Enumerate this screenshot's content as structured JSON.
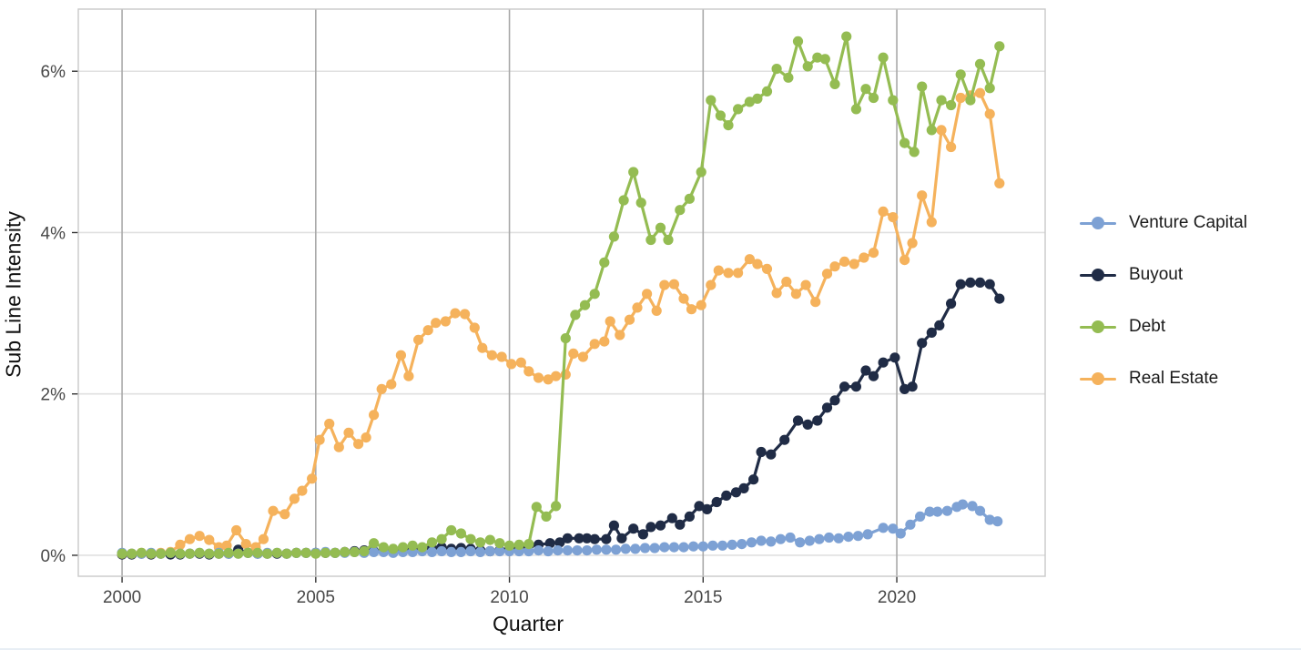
{
  "chart_data": {
    "type": "line",
    "title": "",
    "xlabel": "Quarter",
    "ylabel": "Sub Line Intensity",
    "x_unit": "year (fractional years, quarterly cadence)",
    "y_unit": "percent",
    "xlim": [
      1998.87,
      2023.83
    ],
    "ylim": [
      -0.26,
      6.77
    ],
    "grid": {
      "vertical": true,
      "horizontal": true
    },
    "legend_position": "right",
    "x_ticks": [
      {
        "value": 2000,
        "label": "2000"
      },
      {
        "value": 2005,
        "label": "2005"
      },
      {
        "value": 2010,
        "label": "2010"
      },
      {
        "value": 2015,
        "label": "2015"
      },
      {
        "value": 2020,
        "label": "2020"
      }
    ],
    "y_ticks": [
      {
        "value": 0,
        "label": "0%"
      },
      {
        "value": 2,
        "label": "2%"
      },
      {
        "value": 4,
        "label": "4%"
      },
      {
        "value": 6,
        "label": "6%"
      }
    ],
    "series": [
      {
        "id": "buyout",
        "name": "Buyout",
        "color": "#202C46",
        "legend_order": 2,
        "x": [
          2000.0,
          2000.25,
          2000.5,
          2000.75,
          2001.0,
          2001.25,
          2001.5,
          2001.75,
          2002.0,
          2002.25,
          2002.5,
          2002.75,
          2003.0,
          2003.25,
          2003.5,
          2003.75,
          2004.0,
          2004.25,
          2004.5,
          2004.75,
          2005.0,
          2005.25,
          2005.5,
          2005.75,
          2006.0,
          2006.25,
          2006.5,
          2006.75,
          2007.0,
          2007.25,
          2007.5,
          2007.75,
          2008.0,
          2008.25,
          2008.5,
          2008.75,
          2009.0,
          2009.25,
          2009.5,
          2009.75,
          2010.0,
          2010.25,
          2010.5,
          2010.75,
          2011.05,
          2011.3,
          2011.5,
          2011.8,
          2012.0,
          2012.2,
          2012.5,
          2012.7,
          2012.9,
          2013.2,
          2013.45,
          2013.65,
          2013.9,
          2014.2,
          2014.4,
          2014.65,
          2014.9,
          2015.1,
          2015.35,
          2015.6,
          2015.85,
          2016.05,
          2016.3,
          2016.5,
          2016.75,
          2017.1,
          2017.45,
          2017.7,
          2017.95,
          2018.2,
          2018.4,
          2018.65,
          2018.95,
          2019.2,
          2019.4,
          2019.65,
          2019.95,
          2020.2,
          2020.4,
          2020.65,
          2020.9,
          2021.1,
          2021.4,
          2021.65,
          2021.9,
          2022.15,
          2022.4,
          2022.65
        ],
        "y": [
          0.01,
          0.01,
          0.02,
          0.01,
          0.02,
          0.01,
          0.01,
          0.02,
          0.02,
          0.01,
          0.02,
          0.02,
          0.07,
          0.03,
          0.02,
          0.02,
          0.02,
          0.02,
          0.03,
          0.03,
          0.03,
          0.03,
          0.03,
          0.04,
          0.05,
          0.06,
          0.05,
          0.05,
          0.06,
          0.09,
          0.07,
          0.08,
          0.09,
          0.1,
          0.08,
          0.09,
          0.08,
          0.06,
          0.05,
          0.06,
          0.08,
          0.1,
          0.12,
          0.13,
          0.15,
          0.16,
          0.21,
          0.21,
          0.21,
          0.2,
          0.2,
          0.37,
          0.21,
          0.33,
          0.26,
          0.35,
          0.37,
          0.46,
          0.38,
          0.48,
          0.61,
          0.57,
          0.66,
          0.74,
          0.78,
          0.83,
          0.94,
          1.28,
          1.25,
          1.43,
          1.67,
          1.62,
          1.67,
          1.83,
          1.92,
          2.09,
          2.09,
          2.29,
          2.22,
          2.39,
          2.45,
          2.06,
          2.09,
          2.63,
          2.76,
          2.85,
          3.12,
          3.36,
          3.38,
          3.38,
          3.36,
          3.18
        ]
      },
      {
        "id": "real_estate",
        "name": "Real Estate",
        "color": "#F5B25C",
        "legend_order": 4,
        "x": [
          2000.0,
          2000.25,
          2000.5,
          2000.75,
          2001.0,
          2001.25,
          2001.5,
          2001.75,
          2002.0,
          2002.25,
          2002.5,
          2002.7,
          2002.95,
          2003.2,
          2003.45,
          2003.65,
          2003.9,
          2004.2,
          2004.45,
          2004.65,
          2004.9,
          2005.1,
          2005.35,
          2005.6,
          2005.85,
          2006.1,
          2006.3,
          2006.5,
          2006.7,
          2006.95,
          2007.2,
          2007.4,
          2007.65,
          2007.9,
          2008.1,
          2008.35,
          2008.6,
          2008.85,
          2009.1,
          2009.3,
          2009.55,
          2009.8,
          2010.05,
          2010.3,
          2010.5,
          2010.75,
          2011.0,
          2011.2,
          2011.45,
          2011.65,
          2011.9,
          2012.2,
          2012.45,
          2012.6,
          2012.85,
          2013.1,
          2013.3,
          2013.55,
          2013.8,
          2014.0,
          2014.25,
          2014.5,
          2014.7,
          2014.95,
          2015.2,
          2015.4,
          2015.65,
          2015.9,
          2016.2,
          2016.4,
          2016.65,
          2016.9,
          2017.15,
          2017.4,
          2017.65,
          2017.9,
          2018.2,
          2018.4,
          2018.65,
          2018.9,
          2019.15,
          2019.4,
          2019.65,
          2019.9,
          2020.2,
          2020.4,
          2020.65,
          2020.9,
          2021.15,
          2021.4,
          2021.65,
          2021.9,
          2022.15,
          2022.4,
          2022.65
        ],
        "y": [
          0.02,
          0.02,
          0.03,
          0.02,
          0.03,
          0.04,
          0.13,
          0.2,
          0.24,
          0.19,
          0.1,
          0.12,
          0.31,
          0.14,
          0.1,
          0.2,
          0.55,
          0.51,
          0.7,
          0.8,
          0.95,
          1.43,
          1.63,
          1.34,
          1.52,
          1.38,
          1.46,
          1.74,
          2.06,
          2.12,
          2.48,
          2.22,
          2.67,
          2.79,
          2.88,
          2.9,
          3.0,
          2.99,
          2.82,
          2.57,
          2.48,
          2.46,
          2.37,
          2.39,
          2.28,
          2.2,
          2.18,
          2.22,
          2.24,
          2.5,
          2.46,
          2.62,
          2.65,
          2.9,
          2.73,
          2.92,
          3.07,
          3.24,
          3.03,
          3.35,
          3.36,
          3.18,
          3.05,
          3.1,
          3.35,
          3.53,
          3.5,
          3.5,
          3.67,
          3.61,
          3.55,
          3.25,
          3.39,
          3.24,
          3.35,
          3.14,
          3.49,
          3.58,
          3.64,
          3.61,
          3.69,
          3.75,
          4.26,
          4.19,
          3.66,
          3.87,
          4.46,
          4.13,
          5.27,
          5.06,
          5.67,
          5.7,
          5.73,
          5.47,
          4.61
        ]
      },
      {
        "id": "venture_capital",
        "name": "Venture Capital",
        "color": "#7DA1D4",
        "legend_order": 1,
        "x": [
          2000.0,
          2000.25,
          2000.5,
          2000.75,
          2001.0,
          2001.25,
          2001.5,
          2001.75,
          2002.0,
          2002.25,
          2002.5,
          2002.75,
          2003.0,
          2003.25,
          2003.5,
          2003.75,
          2004.0,
          2004.25,
          2004.5,
          2004.75,
          2005.0,
          2005.25,
          2005.5,
          2005.75,
          2006.0,
          2006.25,
          2006.5,
          2006.75,
          2007.0,
          2007.25,
          2007.5,
          2007.75,
          2008.0,
          2008.25,
          2008.5,
          2008.75,
          2009.0,
          2009.25,
          2009.5,
          2009.75,
          2010.0,
          2010.25,
          2010.5,
          2010.75,
          2011.0,
          2011.25,
          2011.5,
          2011.75,
          2012.0,
          2012.25,
          2012.5,
          2012.75,
          2013.0,
          2013.25,
          2013.5,
          2013.75,
          2014.0,
          2014.25,
          2014.5,
          2014.75,
          2015.0,
          2015.25,
          2015.5,
          2015.75,
          2016.0,
          2016.25,
          2016.5,
          2016.75,
          2017.0,
          2017.25,
          2017.5,
          2017.75,
          2018.0,
          2018.25,
          2018.5,
          2018.75,
          2019.0,
          2019.25,
          2019.65,
          2019.9,
          2020.1,
          2020.35,
          2020.6,
          2020.85,
          2021.05,
          2021.3,
          2021.55,
          2021.7,
          2021.95,
          2022.15,
          2022.4,
          2022.6
        ],
        "y": [
          0.03,
          0.02,
          0.02,
          0.03,
          0.02,
          0.03,
          0.02,
          0.02,
          0.03,
          0.02,
          0.03,
          0.02,
          0.02,
          0.03,
          0.02,
          0.03,
          0.03,
          0.02,
          0.03,
          0.03,
          0.03,
          0.04,
          0.03,
          0.03,
          0.04,
          0.03,
          0.04,
          0.04,
          0.03,
          0.04,
          0.04,
          0.05,
          0.04,
          0.05,
          0.04,
          0.04,
          0.05,
          0.04,
          0.05,
          0.05,
          0.05,
          0.05,
          0.05,
          0.06,
          0.05,
          0.06,
          0.06,
          0.06,
          0.06,
          0.07,
          0.07,
          0.07,
          0.08,
          0.08,
          0.09,
          0.09,
          0.1,
          0.1,
          0.1,
          0.11,
          0.11,
          0.12,
          0.12,
          0.13,
          0.14,
          0.16,
          0.18,
          0.17,
          0.2,
          0.22,
          0.16,
          0.18,
          0.2,
          0.22,
          0.21,
          0.23,
          0.24,
          0.26,
          0.34,
          0.33,
          0.27,
          0.38,
          0.48,
          0.54,
          0.54,
          0.55,
          0.6,
          0.63,
          0.61,
          0.55,
          0.44,
          0.42
        ]
      },
      {
        "id": "debt",
        "name": "Debt",
        "color": "#94BC52",
        "legend_order": 3,
        "x": [
          2000.0,
          2000.25,
          2000.5,
          2000.75,
          2001.0,
          2001.25,
          2001.5,
          2001.75,
          2002.0,
          2002.25,
          2002.5,
          2002.75,
          2003.0,
          2003.25,
          2003.5,
          2003.75,
          2004.0,
          2004.25,
          2004.5,
          2004.75,
          2005.0,
          2005.25,
          2005.5,
          2005.75,
          2006.0,
          2006.25,
          2006.5,
          2006.75,
          2007.0,
          2007.25,
          2007.5,
          2007.75,
          2008.0,
          2008.25,
          2008.5,
          2008.75,
          2009.0,
          2009.25,
          2009.5,
          2009.75,
          2010.0,
          2010.25,
          2010.5,
          2010.7,
          2010.95,
          2011.2,
          2011.45,
          2011.7,
          2011.95,
          2012.2,
          2012.45,
          2012.7,
          2012.95,
          2013.2,
          2013.4,
          2013.65,
          2013.9,
          2014.1,
          2014.4,
          2014.65,
          2014.95,
          2015.2,
          2015.45,
          2015.65,
          2015.9,
          2016.2,
          2016.4,
          2016.65,
          2016.9,
          2017.2,
          2017.45,
          2017.7,
          2017.95,
          2018.15,
          2018.4,
          2018.7,
          2018.95,
          2019.2,
          2019.4,
          2019.65,
          2019.9,
          2020.2,
          2020.45,
          2020.65,
          2020.9,
          2021.15,
          2021.4,
          2021.65,
          2021.9,
          2022.15,
          2022.4,
          2022.65
        ],
        "y": [
          0.02,
          0.02,
          0.03,
          0.02,
          0.02,
          0.03,
          0.02,
          0.02,
          0.03,
          0.02,
          0.02,
          0.03,
          0.02,
          0.03,
          0.03,
          0.02,
          0.03,
          0.02,
          0.03,
          0.03,
          0.02,
          0.03,
          0.03,
          0.04,
          0.04,
          0.05,
          0.15,
          0.1,
          0.08,
          0.1,
          0.12,
          0.1,
          0.16,
          0.2,
          0.31,
          0.27,
          0.2,
          0.16,
          0.19,
          0.15,
          0.12,
          0.13,
          0.14,
          0.6,
          0.48,
          0.61,
          2.69,
          2.98,
          3.1,
          3.24,
          3.63,
          3.95,
          4.4,
          4.75,
          4.37,
          3.91,
          4.06,
          3.91,
          4.28,
          4.42,
          4.75,
          5.64,
          5.45,
          5.33,
          5.53,
          5.62,
          5.66,
          5.75,
          6.03,
          5.92,
          6.37,
          6.06,
          6.17,
          6.15,
          5.84,
          6.43,
          5.53,
          5.78,
          5.67,
          6.17,
          5.64,
          5.11,
          5.0,
          5.81,
          5.27,
          5.64,
          5.58,
          5.96,
          5.64,
          6.09,
          5.79,
          6.31
        ]
      }
    ]
  },
  "axes": {
    "x_title": "Quarter",
    "y_title": "Sub Line Intensity"
  },
  "legend": {
    "items": [
      {
        "label": "Venture Capital",
        "color": "#7DA1D4"
      },
      {
        "label": "Buyout",
        "color": "#202C46"
      },
      {
        "label": "Debt",
        "color": "#94BC52"
      },
      {
        "label": "Real Estate",
        "color": "#F5B25C"
      }
    ]
  },
  "style_colors": {
    "background": "#ffffff",
    "panel_border": "#c9c9c9",
    "vertical_gridline": "#a9a9a9",
    "horizontal_gridline": "#e0e0e0",
    "tick_mark": "#333333",
    "tick_label": "#474747",
    "axis_title": "#111111",
    "legend_text": "#1a1a1a"
  }
}
